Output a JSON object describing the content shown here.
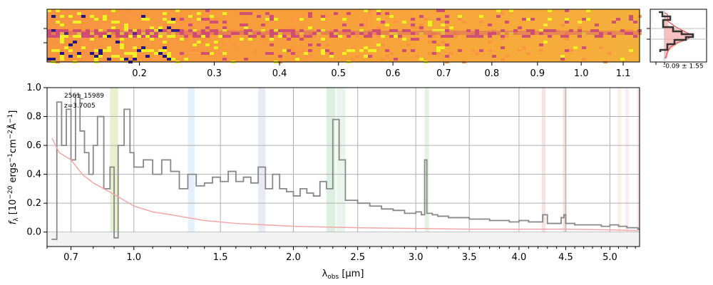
{
  "chart_data": [
    {
      "type": "heatmap",
      "x_top_ticks": [
        "0.2",
        "0.3",
        "0.4",
        "0.5",
        "0.6",
        "0.7",
        "0.8",
        "0.9",
        "1.0",
        "1.1"
      ],
      "colormap": [
        "#0d0887",
        "#7e03a8",
        "#cc4778",
        "#f89540",
        "#f0f921"
      ]
    },
    {
      "type": "line",
      "profile_label": "-0.09 ± 1.55",
      "profile_color": "#333333",
      "profile_fill": "#f4a6a6"
    },
    {
      "type": "line",
      "object_id": "2561_15989",
      "redshift": "z=3.7005",
      "xlabel_main": "λ",
      "xlabel_sub": "obs",
      "xlabel_unit": " [μm]",
      "ylabel_main": "f",
      "ylabel_sub": "λ",
      "ylabel_unit": " [10",
      "ylabel_e1": "−20",
      "ylabel_mid": " ergs",
      "ylabel_e2": "−1",
      "ylabel_cm": "cm",
      "ylabel_e3": "−2",
      "ylabel_A": "Å",
      "ylabel_e4": "−1",
      "ylabel_end": "]",
      "xlim": [
        0.6,
        5.35
      ],
      "ylim": [
        -0.1,
        1.0
      ],
      "xticks": [
        0.7,
        1.0,
        1.5,
        2.0,
        2.5,
        3.0,
        3.5,
        4.0,
        4.5,
        5.0
      ],
      "xtick_labels": [
        "0.7",
        "1.0",
        "1.5",
        "2.0",
        "2.5",
        "3.0",
        "3.5",
        "4.0",
        "4.5",
        "5.0"
      ],
      "yticks": [
        0.0,
        0.2,
        0.4,
        0.6,
        0.8,
        1.0
      ],
      "ytick_labels": [
        "0.0",
        "0.2",
        "0.4",
        "0.6",
        "0.8",
        "1.0"
      ],
      "grid": true,
      "series": [
        {
          "color": "#888888",
          "x": [
            0.62,
            0.64,
            0.66,
            0.68,
            0.7,
            0.72,
            0.74,
            0.76,
            0.78,
            0.8,
            0.82,
            0.85,
            0.88,
            0.9,
            0.92,
            0.95,
            0.98,
            1.0,
            1.05,
            1.1,
            1.15,
            1.2,
            1.25,
            1.3,
            1.35,
            1.4,
            1.45,
            1.5,
            1.55,
            1.6,
            1.65,
            1.7,
            1.75,
            1.8,
            1.85,
            1.9,
            1.95,
            2.0,
            2.05,
            2.1,
            2.15,
            2.2,
            2.25,
            2.3,
            2.35,
            2.4,
            2.5,
            2.6,
            2.7,
            2.8,
            2.9,
            3.0,
            3.05,
            3.08,
            3.1,
            3.15,
            3.2,
            3.3,
            3.4,
            3.5,
            3.6,
            3.7,
            3.8,
            3.9,
            4.0,
            4.1,
            4.2,
            4.25,
            4.3,
            4.4,
            4.45,
            4.48,
            4.5,
            4.6,
            4.7,
            4.8,
            4.9,
            5.0,
            5.1,
            5.2,
            5.3,
            5.33
          ],
          "y": [
            -0.05,
            0.9,
            0.6,
            0.85,
            0.5,
            0.95,
            0.7,
            0.55,
            0.4,
            0.6,
            0.8,
            0.3,
            0.45,
            -0.04,
            0.6,
            0.85,
            0.55,
            0.45,
            0.5,
            0.4,
            0.5,
            0.42,
            0.3,
            0.4,
            0.32,
            0.34,
            0.38,
            0.35,
            0.42,
            0.35,
            0.38,
            0.34,
            0.45,
            0.3,
            0.4,
            0.3,
            0.28,
            0.25,
            0.3,
            0.27,
            0.25,
            0.35,
            0.3,
            0.78,
            0.5,
            0.22,
            0.2,
            0.18,
            0.16,
            0.15,
            0.13,
            0.14,
            0.12,
            0.5,
            0.13,
            0.12,
            0.11,
            0.1,
            0.1,
            0.09,
            0.09,
            0.08,
            0.08,
            0.07,
            0.08,
            0.07,
            0.07,
            0.12,
            0.06,
            0.06,
            0.1,
            0.12,
            0.06,
            0.05,
            0.05,
            0.05,
            0.04,
            0.05,
            0.04,
            0.03,
            0.03,
            0.02
          ]
        },
        {
          "color": "#f4a6a6",
          "x": [
            0.62,
            0.65,
            0.7,
            0.75,
            0.8,
            0.85,
            0.9,
            0.95,
            1.0,
            1.1,
            1.2,
            1.4,
            1.6,
            1.8,
            2.0,
            2.5,
            3.0,
            3.5,
            4.0,
            4.5,
            5.0,
            5.33
          ],
          "y": [
            0.65,
            0.55,
            0.5,
            0.4,
            0.34,
            0.3,
            0.26,
            0.22,
            0.18,
            0.14,
            0.12,
            0.08,
            0.06,
            0.05,
            0.04,
            0.03,
            0.025,
            0.02,
            0.02,
            0.02,
            0.015,
            0.01
          ]
        }
      ],
      "bands": [
        {
          "x": [
            0.88,
            0.92
          ],
          "color": "#d4e6a5"
        },
        {
          "x": [
            1.3,
            1.34
          ],
          "color": "#cfe3f5"
        },
        {
          "x": [
            1.75,
            1.8
          ],
          "color": "#d8d8f0"
        },
        {
          "x": [
            2.25,
            2.32
          ],
          "color": "#bfe3c8"
        },
        {
          "x": [
            2.33,
            2.4
          ],
          "color": "#d7ecdc"
        },
        {
          "x": [
            3.08,
            3.12
          ],
          "color": "#cdebcd"
        },
        {
          "x": [
            4.24,
            4.28
          ],
          "color": "#f2cccc"
        },
        {
          "x": [
            4.47,
            4.51
          ],
          "color": "#e8c4c4"
        },
        {
          "x": [
            5.09,
            5.13
          ],
          "color": "#fbe4cc"
        },
        {
          "x": [
            5.18,
            5.22
          ],
          "color": "#f8dde8"
        },
        {
          "x": [
            5.32,
            5.35
          ],
          "color": "#f3d3ea"
        }
      ]
    }
  ]
}
